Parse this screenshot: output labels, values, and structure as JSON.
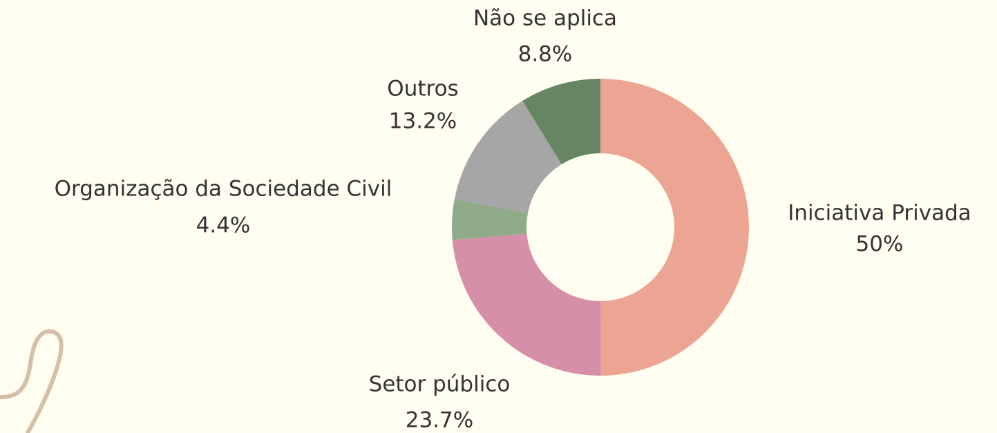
{
  "chart_data": {
    "type": "donut",
    "categories": [
      "Iniciativa Privada",
      "Setor público",
      "Organização da Sociedade Civil",
      "Outros",
      "Não se aplica"
    ],
    "values": [
      50,
      23.7,
      4.4,
      13.2,
      8.8
    ],
    "value_labels": [
      "50%",
      "23.7%",
      "4.4%",
      "13.2%",
      "8.8%"
    ],
    "colors": [
      "#eba592",
      "#d68fa9",
      "#8fab8a",
      "#a6a6a6",
      "#668563"
    ]
  }
}
